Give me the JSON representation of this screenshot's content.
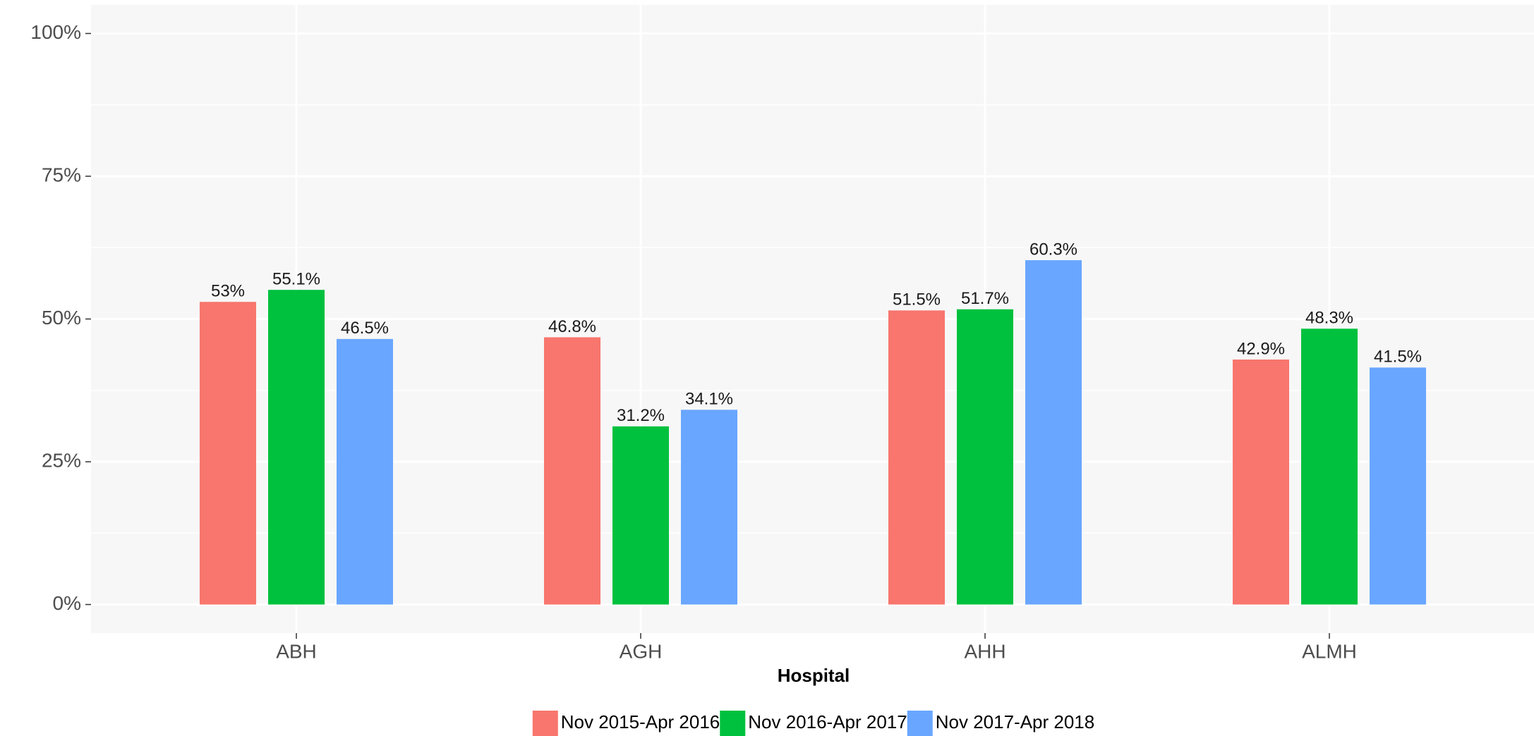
{
  "chart_data": {
    "type": "bar",
    "x_label": "Hospital",
    "categories": [
      "ABH",
      "AGH",
      "AHH",
      "ALMH"
    ],
    "series": [
      {
        "name": "Nov 2015-Apr 2016",
        "color": "#f8766d",
        "values": [
          53,
          46.8,
          51.5,
          42.9
        ],
        "value_labels": [
          "53%",
          "46.8%",
          "51.5%",
          "42.9%"
        ]
      },
      {
        "name": "Nov 2016-Apr 2017",
        "color": "#00c13e",
        "values": [
          55.1,
          31.2,
          51.7,
          48.3
        ],
        "value_labels": [
          "55.1%",
          "31.2%",
          "51.7%",
          "48.3%"
        ]
      },
      {
        "name": "Nov 2017-Apr 2018",
        "color": "#69a6ff",
        "values": [
          46.5,
          34.1,
          60.3,
          41.5
        ],
        "value_labels": [
          "46.5%",
          "34.1%",
          "60.3%",
          "41.5%"
        ]
      }
    ],
    "ylim": [
      -5,
      105
    ],
    "yticks": [
      {
        "value": 0,
        "label": "0%"
      },
      {
        "value": 25,
        "label": "25%"
      },
      {
        "value": 50,
        "label": "50%"
      },
      {
        "value": 75,
        "label": "75%"
      },
      {
        "value": 100,
        "label": "100%"
      }
    ],
    "y_minor_ticks": [
      12.5,
      37.5,
      62.5,
      87.5
    ],
    "grid": true,
    "legend": "bottom"
  }
}
